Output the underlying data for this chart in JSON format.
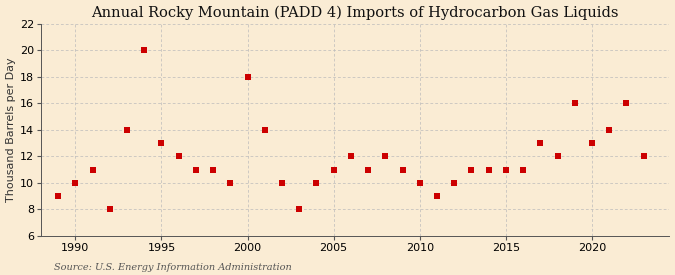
{
  "title": "Annual Rocky Mountain (PADD 4) Imports of Hydrocarbon Gas Liquids",
  "ylabel": "Thousand Barrels per Day",
  "source": "Source: U.S. Energy Information Administration",
  "background_color": "#faecd4",
  "years": [
    1989,
    1990,
    1991,
    1992,
    1993,
    1994,
    1995,
    1996,
    1997,
    1998,
    1999,
    2000,
    2001,
    2002,
    2003,
    2004,
    2005,
    2006,
    2007,
    2008,
    2009,
    2010,
    2011,
    2012,
    2013,
    2014,
    2015,
    2016,
    2017,
    2018,
    2019,
    2020,
    2021,
    2022,
    2023
  ],
  "values": [
    9,
    10,
    11,
    8,
    14,
    20,
    13,
    12,
    11,
    11,
    10,
    18,
    14,
    10,
    8,
    10,
    11,
    12,
    11,
    12,
    11,
    10,
    9,
    10,
    11,
    11,
    11,
    11,
    13,
    12,
    16,
    13,
    14,
    16,
    12
  ],
  "marker_color": "#cc0000",
  "marker_size": 18,
  "ylim": [
    6,
    22
  ],
  "yticks": [
    6,
    8,
    10,
    12,
    14,
    16,
    18,
    20,
    22
  ],
  "xlim": [
    1988.0,
    2024.5
  ],
  "xticks": [
    1990,
    1995,
    2000,
    2005,
    2010,
    2015,
    2020
  ],
  "grid_color": "#bbbbbb",
  "title_fontsize": 10.5,
  "label_fontsize": 8,
  "tick_fontsize": 8,
  "source_fontsize": 7
}
